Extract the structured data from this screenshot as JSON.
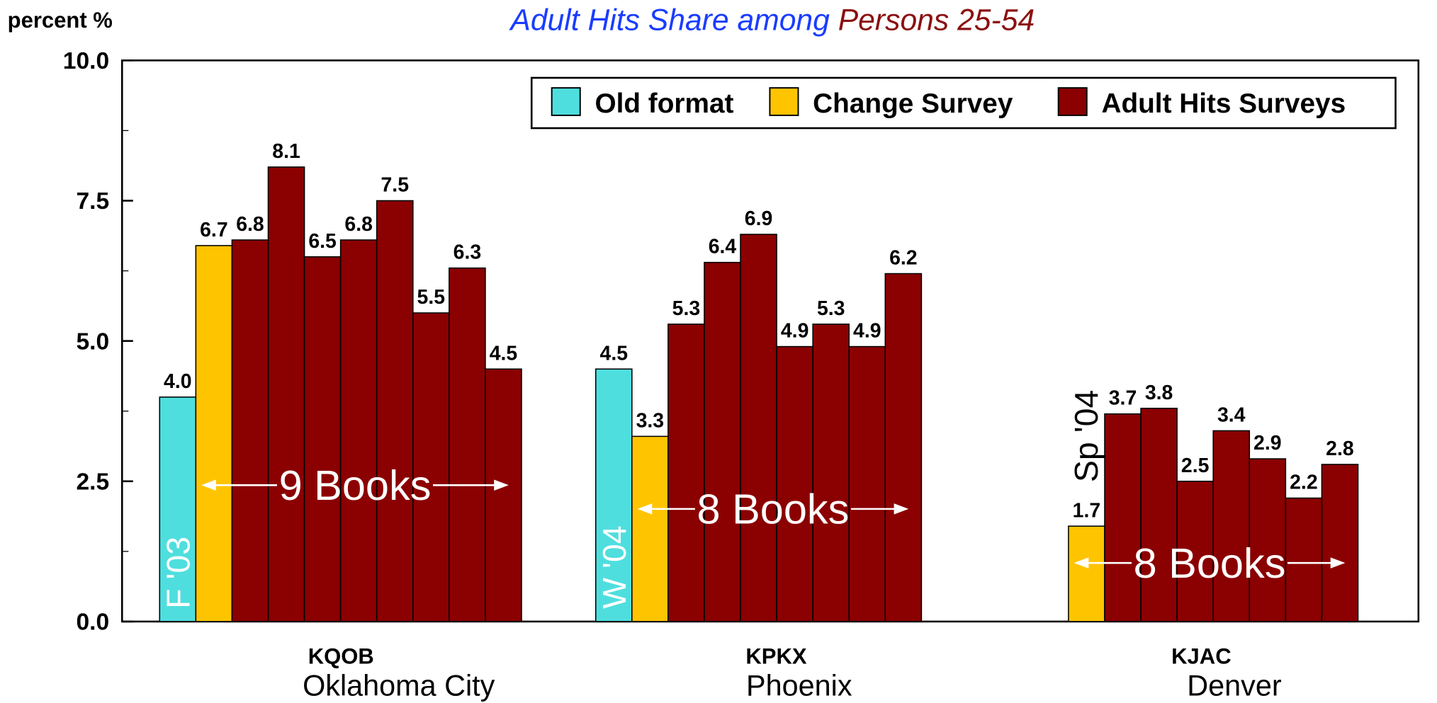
{
  "chart_data": {
    "type": "bar",
    "title_parts": [
      {
        "text": "Adult Hits Share among ",
        "color": "#1a3cff"
      },
      {
        "text": "Persons 25-54",
        "color": "#8b1010"
      }
    ],
    "y_label": "percent %",
    "ylim": [
      0,
      10
    ],
    "yticks": [
      {
        "value": 0,
        "label": "0.0"
      },
      {
        "value": 2.5,
        "label": "2.5"
      },
      {
        "value": 5,
        "label": "5.0"
      },
      {
        "value": 7.5,
        "label": "7.5"
      },
      {
        "value": 10,
        "label": "10.0"
      }
    ],
    "minor_yticks": [
      1.25,
      3.75,
      6.25,
      8.75
    ],
    "legend": "top-right",
    "series": [
      {
        "name": "Old format",
        "color": "#4fdede"
      },
      {
        "name": "Change Survey",
        "color": "#ffc400"
      },
      {
        "name": "Adult Hits Surveys",
        "color": "#8b0000"
      }
    ],
    "groups": [
      {
        "station": "KQOB",
        "city": "Oklahoma City",
        "period": "F '03",
        "books": "9 Books",
        "old": {
          "value": 4.0,
          "value_label": "4.0"
        },
        "change": {
          "value": 6.7,
          "value_label": "6.7"
        },
        "surveys": {
          "values": [
            6.8,
            8.1,
            6.5,
            6.8,
            7.5,
            5.5,
            6.3,
            4.5
          ],
          "value_labels": [
            "6.8",
            "8.1",
            "6.5",
            "6.8",
            "7.5",
            "5.5",
            "6.3",
            "4.5"
          ]
        }
      },
      {
        "station": "KPKX",
        "city": "Phoenix",
        "period": "W '04",
        "books": "8 Books",
        "old": {
          "value": 4.5,
          "value_label": "4.5"
        },
        "change": {
          "value": 3.3,
          "value_label": "3.3"
        },
        "surveys": {
          "values": [
            5.3,
            6.4,
            6.9,
            4.9,
            5.3,
            4.9,
            6.2
          ],
          "value_labels": [
            "5.3",
            "6.4",
            "6.9",
            "4.9",
            "5.3",
            "4.9",
            "6.2"
          ]
        }
      },
      {
        "station": "KJAC",
        "city": "Denver",
        "period": "Sp '04",
        "books": "8 Books",
        "change": {
          "value": 1.7,
          "value_label": "1.7"
        },
        "surveys": {
          "values": [
            3.7,
            3.8,
            2.5,
            3.4,
            2.9,
            2.2,
            2.8
          ],
          "value_labels": [
            "3.7",
            "3.8",
            "2.5",
            "3.4",
            "2.9",
            "2.2",
            "2.8"
          ]
        }
      }
    ]
  }
}
